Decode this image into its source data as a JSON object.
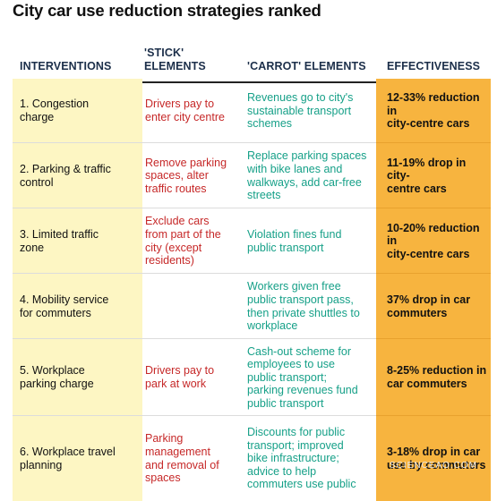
{
  "title": "City car use reduction strategies ranked",
  "headers": {
    "interventions": "INTERVENTIONS",
    "stick_line1": "'STICK'",
    "stick_line2": "ELEMENTS",
    "carrot": "'CARROT' ELEMENTS",
    "effectiveness": "EFFECTIVENESS"
  },
  "rows": [
    {
      "intervention": [
        "1. Congestion",
        "charge"
      ],
      "stick": [
        "Drivers pay to",
        "enter city centre"
      ],
      "carrot": [
        "Revenues go to city's",
        "sustainable transport",
        "schemes"
      ],
      "effectiveness": [
        "12-33% reduction in",
        "city-centre cars"
      ]
    },
    {
      "intervention": [
        "2. Parking & traffic",
        "control"
      ],
      "stick": [
        "Remove parking",
        "spaces, alter",
        "traffic routes"
      ],
      "carrot": [
        "Replace parking spaces",
        "with bike lanes and",
        "walkways, add car-free",
        "streets"
      ],
      "effectiveness": [
        "11-19% drop in city-",
        "centre cars"
      ]
    },
    {
      "intervention": [
        "3. Limited traffic",
        "zone"
      ],
      "stick": [
        "Exclude cars",
        "from part of the",
        "city (except",
        "residents)"
      ],
      "carrot": [
        "Violation fines fund",
        "public transport"
      ],
      "effectiveness": [
        "10-20% reduction in",
        "city-centre cars"
      ]
    },
    {
      "intervention": [
        "4. Mobility service",
        "for commuters"
      ],
      "stick": [],
      "carrot": [
        "Workers given free",
        "public transport pass,",
        "then private shuttles to",
        "workplace"
      ],
      "effectiveness": [
        "37% drop in car",
        "commuters"
      ]
    },
    {
      "intervention": [
        "5. Workplace",
        "parking charge"
      ],
      "stick": [
        "Drivers pay to",
        "park at work"
      ],
      "carrot": [
        "Cash-out scheme for",
        "employees to use",
        "public transport;",
        "parking revenues fund",
        "public transport"
      ],
      "effectiveness": [
        "8-25% reduction in",
        "car commuters"
      ]
    },
    {
      "intervention": [
        "6. Workplace travel",
        "planning"
      ],
      "stick": [
        "Parking",
        "management",
        "and removal of",
        "spaces"
      ],
      "carrot": [
        "Discounts for public",
        "transport; improved",
        "bike infrastructure;",
        "advice to help",
        "commuters use public"
      ],
      "effectiveness": [
        "3-18% drop in car",
        "use by commuters"
      ]
    }
  ],
  "watermark": "SCIENCEAO.COM",
  "colors": {
    "intervention_bg": "#fdf6c3",
    "stick_text": "#c62828",
    "carrot_text": "#16a088",
    "effectiveness_bg": "#f7b43f",
    "header_text": "#1c2f4a"
  }
}
